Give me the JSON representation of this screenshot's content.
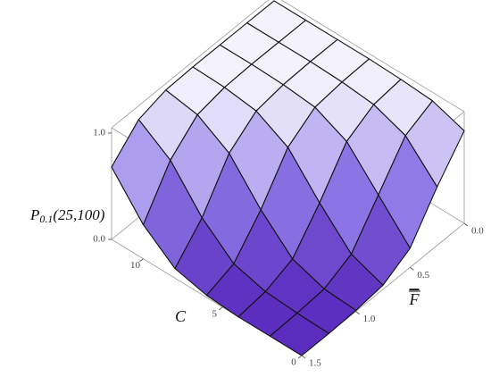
{
  "chart_data": {
    "type": "surface",
    "xlabel": "C",
    "ylabel": "F",
    "zlabel": {
      "base": "P",
      "sub": "0.1",
      "rest": "(25,100)"
    },
    "x": [
      0,
      2,
      4,
      6,
      8,
      10,
      12
    ],
    "y": [
      0,
      0.25,
      0.5,
      0.75,
      1,
      1.25,
      1.5
    ],
    "z": [
      [
        0.87,
        0.55,
        0.18,
        0.04,
        0.01,
        0.0,
        0.0
      ],
      [
        0.97,
        0.85,
        0.5,
        0.15,
        0.03,
        0.01,
        0.0
      ],
      [
        0.99,
        0.96,
        0.82,
        0.45,
        0.13,
        0.03,
        0.0
      ],
      [
        1.0,
        0.99,
        0.96,
        0.79,
        0.41,
        0.11,
        0.02
      ],
      [
        1.0,
        1.0,
        0.99,
        0.95,
        0.76,
        0.36,
        0.09
      ],
      [
        1.0,
        1.0,
        1.0,
        0.99,
        0.94,
        0.72,
        0.32
      ],
      [
        1.0,
        1.0,
        1.0,
        1.0,
        0.99,
        0.92,
        0.68
      ]
    ],
    "xlim": [
      0,
      12
    ],
    "xticks": [
      0,
      5,
      10
    ],
    "ylim": [
      0,
      1.5
    ],
    "yticks": [
      {
        "value": 0,
        "label": "0.0"
      },
      {
        "value": 0.5,
        "label": "0.5"
      },
      {
        "value": 1,
        "label": "1.0"
      },
      {
        "value": 1.5,
        "label": "1.5"
      }
    ],
    "zlim": [
      0,
      1.05
    ],
    "zticks": [
      {
        "value": 0,
        "label": "0.0"
      },
      {
        "value": 1,
        "label": "1.0"
      }
    ],
    "colors": [
      "#5b2dbf",
      "#8f7be8",
      "#ffffff"
    ]
  }
}
